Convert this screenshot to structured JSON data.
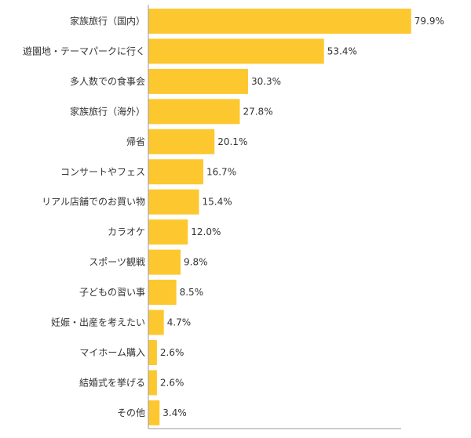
{
  "chart_data": {
    "type": "bar",
    "orientation": "horizontal",
    "categories": [
      "家族旅行（国内）",
      "遊園地・テーマパークに行く",
      "多人数での食事会",
      "家族旅行（海外）",
      "帰省",
      "コンサートやフェス",
      "リアル店舗でのお買い物",
      "カラオケ",
      "スポーツ観戦",
      "子どもの習い事",
      "妊娠・出産を考えたい",
      "マイホーム購入",
      "結婚式を挙げる",
      "その他"
    ],
    "values": [
      79.9,
      53.4,
      30.3,
      27.8,
      20.1,
      16.7,
      15.4,
      12.0,
      9.8,
      8.5,
      4.7,
      2.6,
      2.6,
      3.4
    ],
    "value_labels": [
      "79.9%",
      "53.4%",
      "30.3%",
      "27.8%",
      "20.1%",
      "16.7%",
      "15.4%",
      "12.0%",
      "9.8%",
      "8.5%",
      "4.7%",
      "2.6%",
      "2.6%",
      "3.4%"
    ],
    "unit": "%",
    "xlim": [
      0,
      100
    ],
    "grid": false,
    "legend": "none",
    "colors": {
      "bar": "#FDC82F",
      "axis": "#999999",
      "text": "#333333"
    }
  }
}
